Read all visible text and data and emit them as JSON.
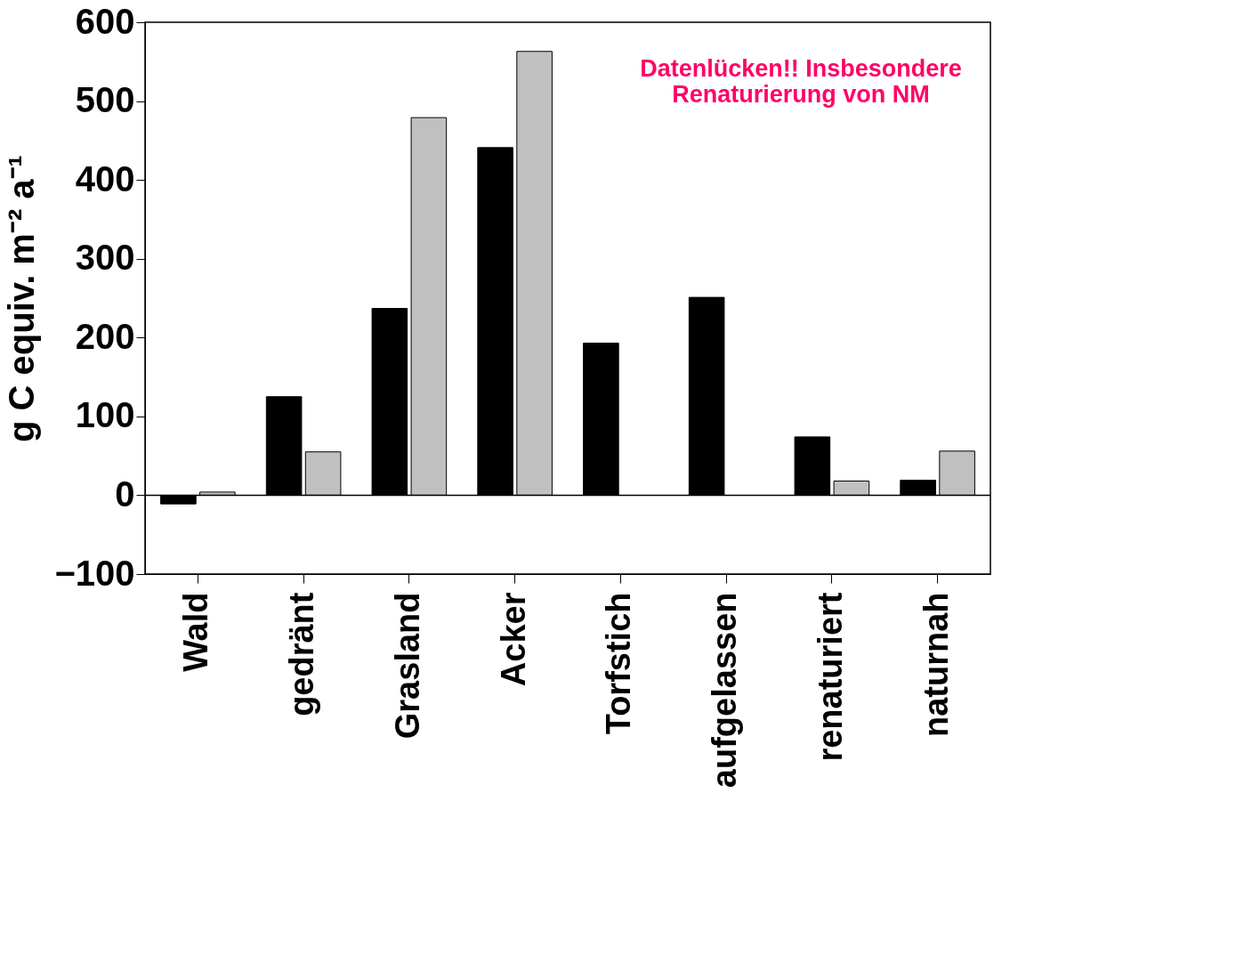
{
  "chart_data": {
    "type": "bar",
    "ylabel": "g C equiv. m⁻² a⁻¹",
    "categories": [
      "Wald",
      "gedränt",
      "Grasland",
      "Acker",
      "Torfstich",
      "aufgelassen",
      "renaturiert",
      "naturnah"
    ],
    "series": [
      {
        "color": "#000000",
        "values": [
          -11,
          125,
          237,
          441,
          193,
          251,
          74,
          19
        ]
      },
      {
        "color": "#c0c0c0",
        "values": [
          4,
          55,
          479,
          563,
          null,
          null,
          18,
          56
        ]
      }
    ],
    "ylim": [
      -100,
      600
    ],
    "yticks": [
      -100,
      0,
      100,
      200,
      300,
      400,
      500,
      600
    ],
    "ref_lines": [
      {
        "axis": "y",
        "value": 0,
        "color": "#000000"
      }
    ],
    "annotations": [
      "Datenlücken!! Insbesondere\nRenaturierung von NM"
    ],
    "grid": false,
    "legend": false
  }
}
